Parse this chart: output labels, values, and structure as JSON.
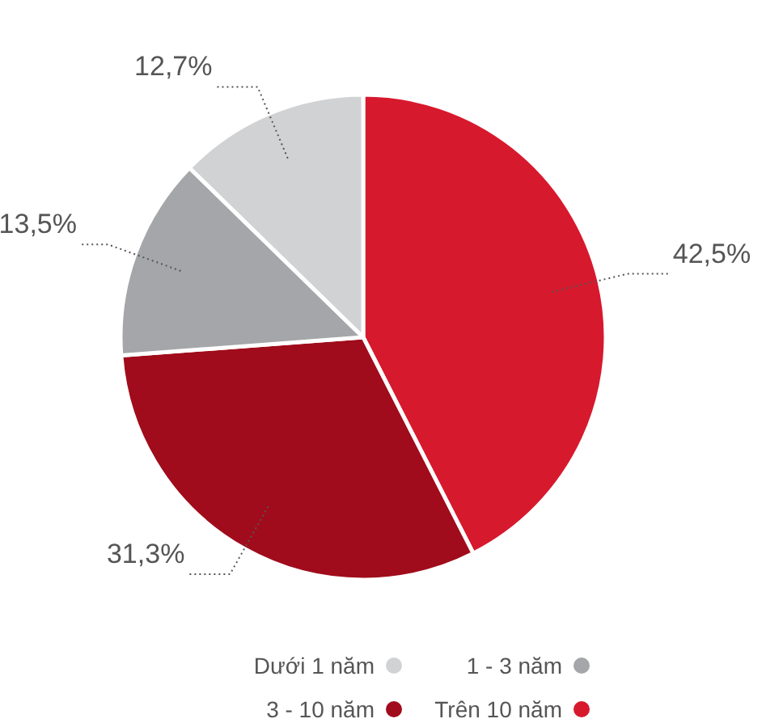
{
  "chart_data": {
    "type": "pie",
    "categories": [
      "Trên 10 năm",
      "3 - 10 năm",
      "1 - 3 năm",
      "Dưới 1 năm"
    ],
    "values": [
      42.5,
      31.3,
      13.5,
      12.7
    ],
    "value_labels": [
      "42,5%",
      "31,3%",
      "13,5%",
      "12,7%"
    ],
    "colors": [
      "#d7192d",
      "#a00c1b",
      "#a5a6a9",
      "#d1d2d4"
    ],
    "legend": "bottom"
  }
}
